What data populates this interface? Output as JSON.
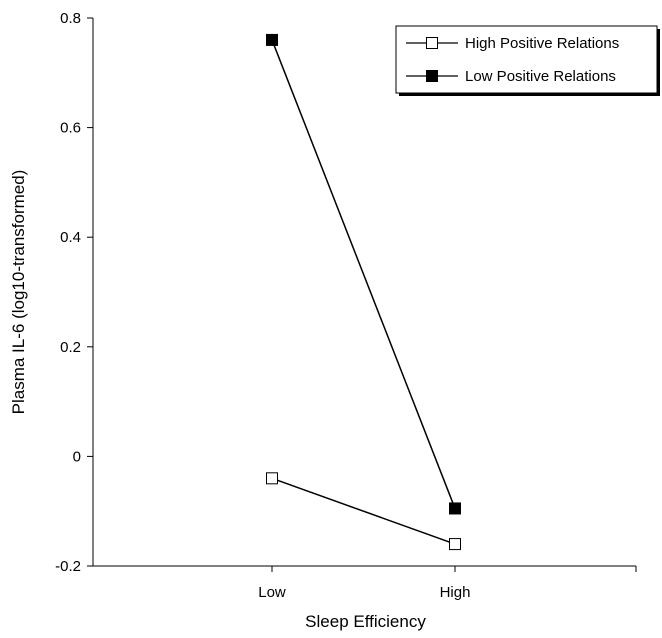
{
  "chart_data": {
    "type": "line",
    "categories": [
      "Low",
      "High"
    ],
    "xlabel": "Sleep Efficiency",
    "ylabel": "Plasma IL-6 (log10-transformed)",
    "ylim": [
      -0.2,
      0.8
    ],
    "yticks": [
      "0.8",
      "0.6",
      "0.4",
      "0.2",
      "0",
      "-0.2"
    ],
    "ytick_values": [
      0.8,
      0.6,
      0.4,
      0.2,
      0,
      -0.2
    ],
    "grid": false,
    "legend_position": "top-right",
    "series": [
      {
        "name": "High Positive Relations",
        "values": [
          -0.04,
          -0.16
        ],
        "marker": "open-square",
        "color": "#000000"
      },
      {
        "name": "Low Positive Relations",
        "values": [
          0.76,
          -0.095
        ],
        "marker": "filled-square",
        "color": "#000000"
      }
    ]
  }
}
